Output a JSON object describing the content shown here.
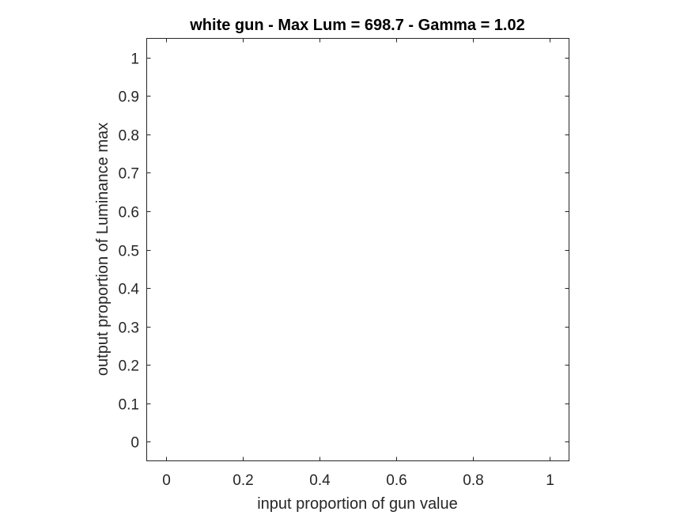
{
  "chart_data": {
    "type": "line",
    "title": "white gun - Max Lum = 698.7 - Gamma = 1.02",
    "xlabel": "input proportion of gun value",
    "ylabel": "output proportion of Luminance max",
    "xlim": [
      -0.05,
      1.05
    ],
    "ylim": [
      -0.05,
      1.05
    ],
    "xticks": [
      0,
      0.2,
      0.4,
      0.6,
      0.8,
      1
    ],
    "xtick_labels": [
      "0",
      "0.2",
      "0.4",
      "0.6",
      "0.8",
      "1"
    ],
    "yticks": [
      0,
      0.1,
      0.2,
      0.3,
      0.4,
      0.5,
      0.6,
      0.7,
      0.8,
      0.9,
      1
    ],
    "ytick_labels": [
      "0",
      "0.1",
      "0.2",
      "0.3",
      "0.4",
      "0.5",
      "0.6",
      "0.7",
      "0.8",
      "0.9",
      "1"
    ],
    "grid": false,
    "series": []
  }
}
